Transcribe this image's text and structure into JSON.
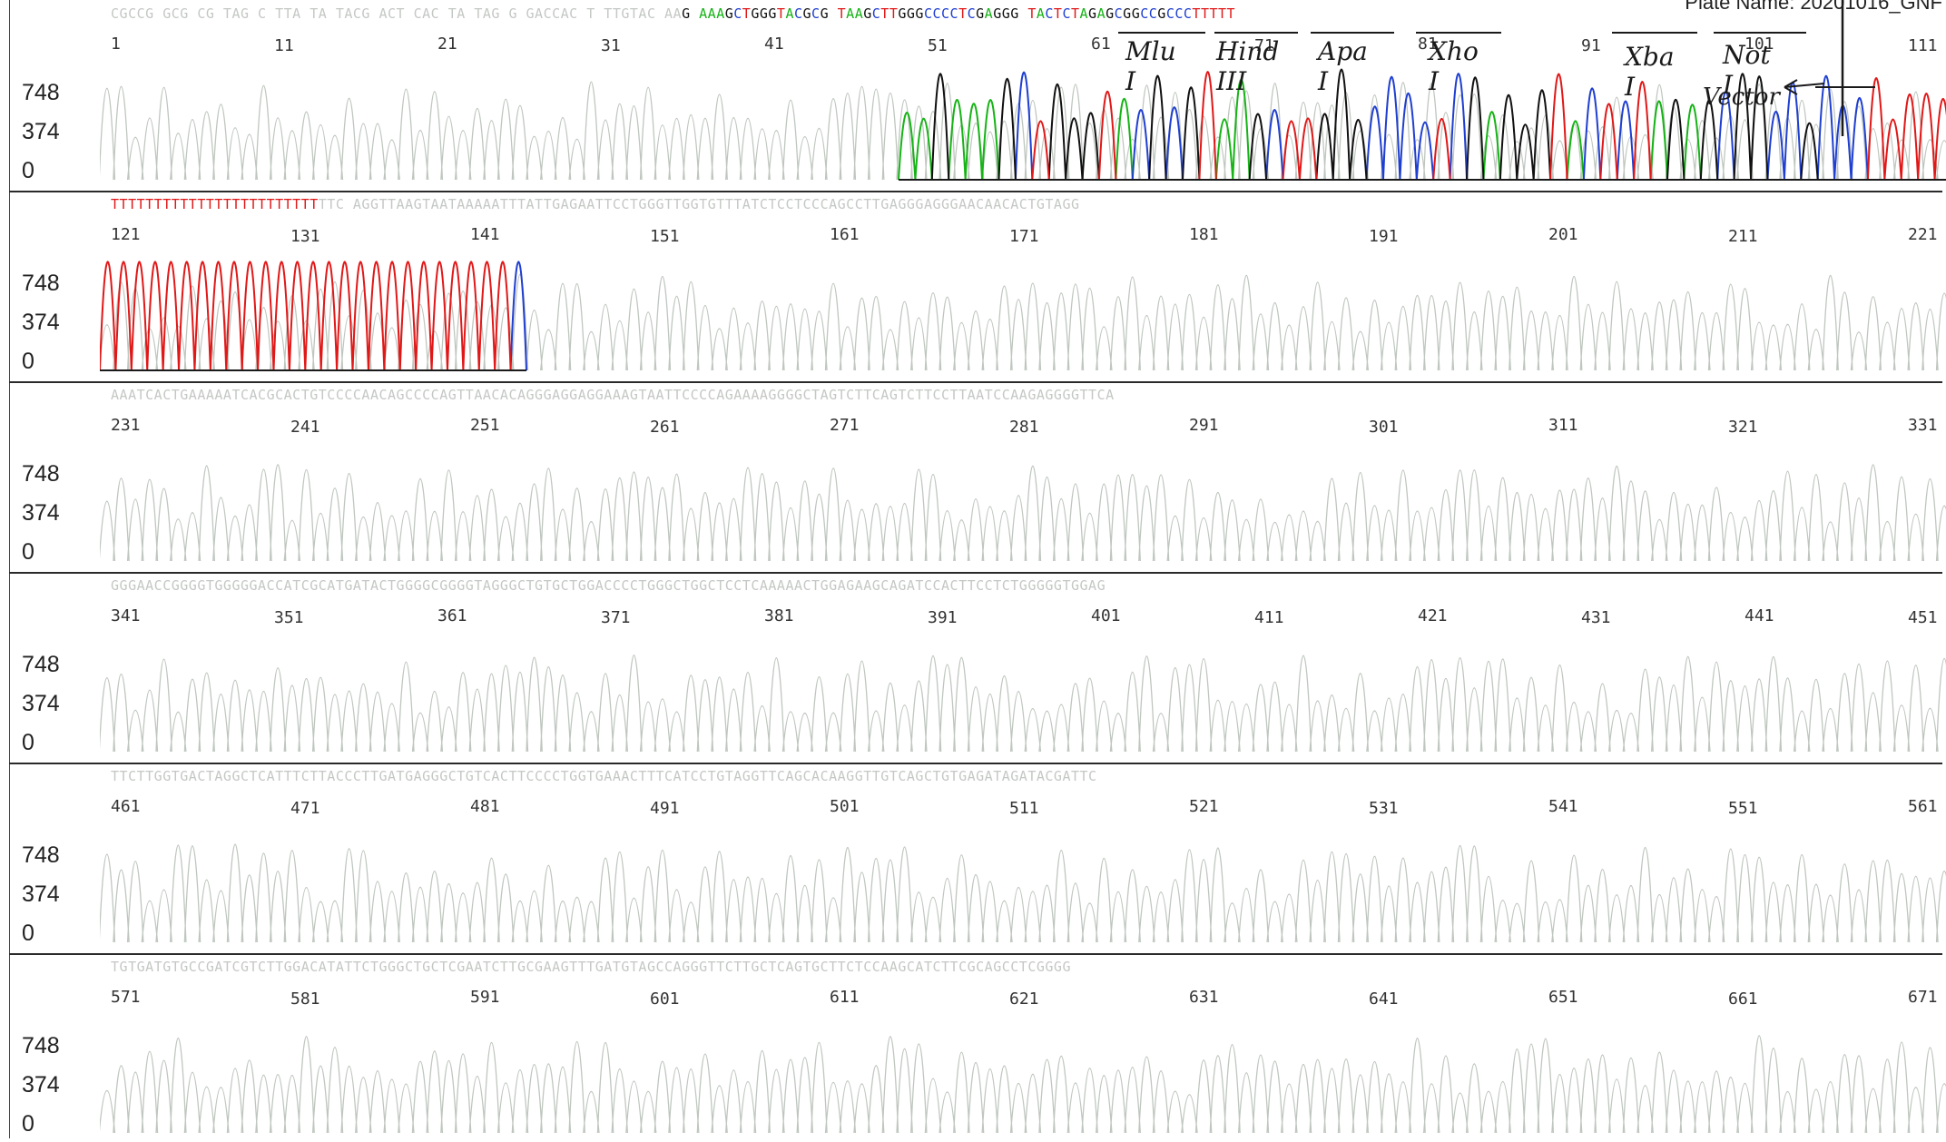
{
  "header": {
    "plate_name": "Plate Name: 20201016_GNF"
  },
  "colors": {
    "A": "#16b316",
    "C": "#1f3fd0",
    "G": "#111111",
    "T": "#e01818",
    "faint": "#c4c8c4"
  },
  "y_axis": {
    "ticks": [
      "748",
      "374",
      "0"
    ]
  },
  "annotations": {
    "sites": [
      "Mlu I",
      "Hind III",
      "Apa I",
      "Xho I",
      "Xba I",
      "Not I"
    ],
    "arrow_label": "Vector"
  },
  "chart_data": {
    "type": "sequencing-chromatogram",
    "ylim": [
      0,
      748
    ],
    "y_ticks": [
      748,
      374,
      0
    ],
    "panels": [
      {
        "sequence": "CGCCG GCG CG TAG C TTA TA TACG ACT CAC TA TAG G GACCAC T TTGTAC AAG AAAGCTGGGTACGCG TAAGCTTGGGCCCCTCGAGGG TACTCTAGAGCGGCCGCCCTTTTT",
        "positions": [
          "1",
          "11",
          "21",
          "31",
          "41",
          "51",
          "61",
          "71",
          "81",
          "91",
          "101",
          "111"
        ],
        "clear_region": {
          "from": 51,
          "to": 115
        }
      },
      {
        "sequence": "TTTTTTTTTTTTTTTTTTTTTTTTTTC AGGTTAAGTAATAAAAATTTATTGAGAATTCCTGGGTTGGTGTTTATCTCCTCCCAGCCTTGAGGGAGGGAACAACACTGTAGG",
        "positions": [
          "121",
          "131",
          "141",
          "151",
          "161",
          "171",
          "181",
          "191",
          "201",
          "211",
          "221"
        ],
        "clear_region": {
          "from": 116,
          "to": 141
        }
      },
      {
        "sequence": "AAATCACTGAAAAATCACGCACTGTCCCCAACAGCCCCAGTTAACACAGGGAGGAGGAAAGTAATTCCCCAGAAAAGGGGCTAGTCTTCAGTCTTCCTTAATCCAAGAGGGGTTCA",
        "positions": [
          "231",
          "241",
          "251",
          "261",
          "271",
          "281",
          "291",
          "301",
          "311",
          "321",
          "331"
        ]
      },
      {
        "sequence": "GGGAACCGGGGTGGGGGACCATCGCATGATACTGGGGCGGGGTAGGGCTGTGCTGGACCCCTGGGCTGGCTCCTCAAAAACTGGAGAAGCAGATCCACTTCCTCTGGGGGTGGAG",
        "positions": [
          "341",
          "351",
          "361",
          "371",
          "381",
          "391",
          "401",
          "411",
          "421",
          "431",
          "441",
          "451"
        ]
      },
      {
        "sequence": "TTCTTGGTGACTAGGCTCATTTCTTACCCTTGATGAGGGCTGTCACTTCCCCTGGTGAAACTTTCATCCTGTAGGTTCAGCACAAGGTTGTCAGCTGTGAGATAGATACGATTC",
        "positions": [
          "461",
          "471",
          "481",
          "491",
          "501",
          "511",
          "521",
          "531",
          "541",
          "551",
          "561"
        ]
      },
      {
        "sequence": "TGTGATGTGCCGATCGTCTTGGACATATTCTGGGCTGCTCGAATCTTGCGAAGTTTGATGTAGCCAGGGTTCTTGCTCAGTGCTTCTCCAAGCATCTTCGCAGCCTCGGGG",
        "positions": [
          "571",
          "581",
          "591",
          "601",
          "611",
          "621",
          "631",
          "641",
          "651",
          "661",
          "671"
        ]
      }
    ]
  }
}
